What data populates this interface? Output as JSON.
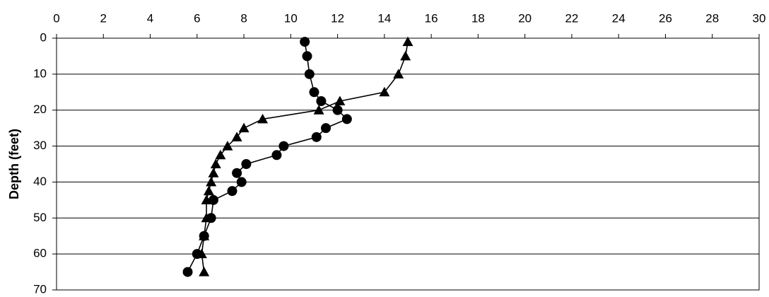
{
  "chart_data": {
    "type": "line",
    "title": "",
    "xlabel": "",
    "ylabel": "Depth (feet)",
    "x_axis_position": "top",
    "y_axis_inverted": true,
    "xlim": [
      0,
      30
    ],
    "ylim": [
      0,
      70
    ],
    "x_ticks": [
      0,
      2,
      4,
      6,
      8,
      10,
      12,
      14,
      16,
      18,
      20,
      22,
      24,
      26,
      28,
      30
    ],
    "y_ticks": [
      0,
      10,
      20,
      30,
      40,
      50,
      60,
      70
    ],
    "grid": "horizontal",
    "legend": "none",
    "series": [
      {
        "marker": "circle",
        "color": "#000000",
        "points": [
          [
            10.6,
            1
          ],
          [
            10.7,
            5
          ],
          [
            10.8,
            10
          ],
          [
            11.0,
            15
          ],
          [
            11.3,
            17.5
          ],
          [
            12.0,
            20
          ],
          [
            12.4,
            22.5
          ],
          [
            11.5,
            25
          ],
          [
            11.1,
            27.5
          ],
          [
            9.7,
            30
          ],
          [
            9.4,
            32.5
          ],
          [
            8.1,
            35
          ],
          [
            7.7,
            37.5
          ],
          [
            7.9,
            40
          ],
          [
            7.5,
            42.5
          ],
          [
            6.7,
            45
          ],
          [
            6.6,
            50
          ],
          [
            6.3,
            55
          ],
          [
            6.0,
            60
          ],
          [
            5.6,
            65
          ]
        ]
      },
      {
        "marker": "triangle",
        "color": "#000000",
        "points": [
          [
            15.0,
            1
          ],
          [
            14.9,
            5
          ],
          [
            14.6,
            10
          ],
          [
            14.0,
            15
          ],
          [
            12.1,
            17.5
          ],
          [
            11.2,
            20
          ],
          [
            8.8,
            22.5
          ],
          [
            8.0,
            25
          ],
          [
            7.7,
            27.5
          ],
          [
            7.3,
            30
          ],
          [
            7.0,
            32.5
          ],
          [
            6.8,
            35
          ],
          [
            6.7,
            37.5
          ],
          [
            6.6,
            40
          ],
          [
            6.5,
            42.5
          ],
          [
            6.4,
            45
          ],
          [
            6.4,
            50
          ],
          [
            6.3,
            55
          ],
          [
            6.2,
            60
          ],
          [
            6.3,
            65
          ]
        ]
      }
    ]
  }
}
